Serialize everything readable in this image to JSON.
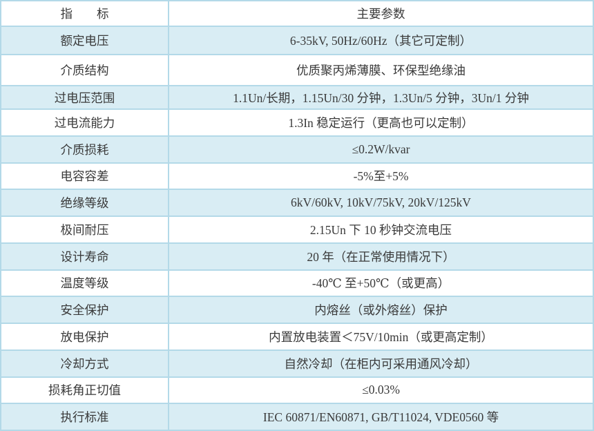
{
  "table": {
    "header": {
      "indicator": "指　　标",
      "parameter": "主要参数"
    },
    "rows": [
      {
        "label": "额定电压",
        "value": "6-35kV, 50Hz/60Hz（其它可定制）"
      },
      {
        "label": "介质结构",
        "value": "优质聚丙烯薄膜、环保型绝缘油"
      },
      {
        "label": "过电压范围",
        "value": "1.1Un/长期，1.15Un/30 分钟，1.3Un/5 分钟，3Un/1 分钟"
      },
      {
        "label": "过电流能力",
        "value": "1.3In 稳定运行（更高也可以定制）"
      },
      {
        "label": "介质损耗",
        "value": "≤0.2W/kvar"
      },
      {
        "label": "电容容差",
        "value": "-5%至+5%"
      },
      {
        "label": "绝缘等级",
        "value": "6kV/60kV, 10kV/75kV, 20kV/125kV"
      },
      {
        "label": "极间耐压",
        "value": "2.15Un 下 10 秒钟交流电压"
      },
      {
        "label": "设计寿命",
        "value": "20 年（在正常使用情况下）"
      },
      {
        "label": "温度等级",
        "value": "-40℃ 至+50℃（或更高）"
      },
      {
        "label": "安全保护",
        "value": "内熔丝（或外熔丝）保护"
      },
      {
        "label": "放电保护",
        "value": "内置放电装置＜75V/10min（或更高定制）"
      },
      {
        "label": "冷却方式",
        "value": "自然冷却（在柜内可采用通风冷却）"
      },
      {
        "label": "损耗角正切值",
        "value": "≤0.03%"
      },
      {
        "label": "执行标准",
        "value": "IEC 60871/EN60871, GB/T11024, VDE0560 等"
      }
    ],
    "colors": {
      "stripe_row": "#d9edf4",
      "plain_row": "#ffffff",
      "grid_border": "#b3d9e8",
      "text": "#3a3a3a"
    }
  }
}
